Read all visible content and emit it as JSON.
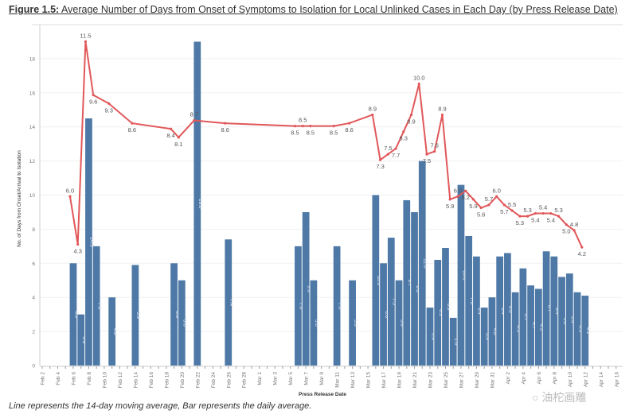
{
  "figure": {
    "label": "Figure 1.5:",
    "title": "Average Number of Days from Onset of Symptoms to Isolation for Local Unlinked Cases in Each Day (by Press Release Date)",
    "caption": "Line represents the 14-day moving average, Bar represents the daily average.",
    "watermark": "油柁画雕"
  },
  "chart_data": {
    "type": "bar+line",
    "xlabel": "Press Release Date",
    "ylabel": "No. of Days from Onset/Arrival to Isolation",
    "year": 2020,
    "x_range": [
      "Feb 2",
      "Apr 16"
    ],
    "ylim": [
      0,
      20
    ],
    "line_ylim": [
      0,
      12.1
    ],
    "yticks": [
      0,
      2,
      4,
      6,
      8,
      10,
      12,
      14,
      16,
      18
    ],
    "xtick_labels": [
      "Feb 2",
      "Feb 4",
      "Feb 6",
      "Feb 8",
      "Feb 10",
      "Feb 12",
      "Feb 14",
      "Feb 16",
      "Feb 18",
      "Feb 20",
      "Feb 22",
      "Feb 24",
      "Feb 26",
      "Feb 28",
      "Mar 1",
      "Mar 3",
      "Mar 5",
      "Mar 7",
      "Mar 9",
      "Mar 11",
      "Mar 13",
      "Mar 15",
      "Mar 17",
      "Mar 19",
      "Mar 21",
      "Mar 23",
      "Mar 25",
      "Mar 27",
      "Mar 29",
      "Mar 31",
      "Apr 2",
      "Apr 4",
      "Apr 6",
      "Apr 8",
      "Apr 10",
      "Apr 12",
      "Apr 14",
      "Apr 16"
    ],
    "grid": true,
    "colors": {
      "bar": "#4e79a7",
      "line": "#e15759"
    },
    "bars": [
      {
        "date": "Feb 6",
        "value": 6.0
      },
      {
        "date": "Feb 7",
        "value": 3.0
      },
      {
        "date": "Feb 8",
        "value": 14.5
      },
      {
        "date": "Feb 9",
        "value": 7.0
      },
      {
        "date": "Feb 11",
        "value": 4.0
      },
      {
        "date": "Feb 14",
        "value": 5.9
      },
      {
        "date": "Feb 19",
        "value": 6.0
      },
      {
        "date": "Feb 20",
        "value": 5.0
      },
      {
        "date": "Feb 22",
        "value": 19.0
      },
      {
        "date": "Feb 26",
        "value": 7.4
      },
      {
        "date": "Mar 6",
        "value": 7.0
      },
      {
        "date": "Mar 7",
        "value": 9.0
      },
      {
        "date": "Mar 8",
        "value": 5.0
      },
      {
        "date": "Mar 11",
        "value": 7.0
      },
      {
        "date": "Mar 13",
        "value": 5.0
      },
      {
        "date": "Mar 16",
        "value": 10.0
      },
      {
        "date": "Mar 17",
        "value": 6.0
      },
      {
        "date": "Mar 18",
        "value": 7.5
      },
      {
        "date": "Mar 19",
        "value": 5.0
      },
      {
        "date": "Mar 20",
        "value": 9.7
      },
      {
        "date": "Mar 21",
        "value": 9.0
      },
      {
        "date": "Mar 22",
        "value": 12.0
      },
      {
        "date": "Mar 23",
        "value": 3.4
      },
      {
        "date": "Mar 24",
        "value": 6.2
      },
      {
        "date": "Mar 25",
        "value": 6.9
      },
      {
        "date": "Mar 26",
        "value": 2.8
      },
      {
        "date": "Mar 27",
        "value": 10.6
      },
      {
        "date": "Mar 28",
        "value": 7.6
      },
      {
        "date": "Mar 29",
        "value": 6.4
      },
      {
        "date": "Mar 30",
        "value": 3.4
      },
      {
        "date": "Mar 31",
        "value": 4.0
      },
      {
        "date": "Apr 1",
        "value": 6.4
      },
      {
        "date": "Apr 2",
        "value": 6.6
      },
      {
        "date": "Apr 3",
        "value": 4.3
      },
      {
        "date": "Apr 4",
        "value": 5.7
      },
      {
        "date": "Apr 5",
        "value": 4.7
      },
      {
        "date": "Apr 6",
        "value": 4.5
      },
      {
        "date": "Apr 7",
        "value": 6.7
      },
      {
        "date": "Apr 8",
        "value": 6.4
      },
      {
        "date": "Apr 9",
        "value": 5.2
      },
      {
        "date": "Apr 10",
        "value": 5.4
      },
      {
        "date": "Apr 11",
        "value": 4.3
      },
      {
        "date": "Apr 12",
        "value": 4.1
      }
    ],
    "line": [
      {
        "date": "Feb 6",
        "value": 6.0
      },
      {
        "date": "Feb 7",
        "value": 4.3
      },
      {
        "date": "Feb 8",
        "value": 11.5
      },
      {
        "date": "Feb 9",
        "value": 9.6
      },
      {
        "date": "Feb 11",
        "value": 9.3
      },
      {
        "date": "Feb 14",
        "value": 8.6
      },
      {
        "date": "Feb 19",
        "value": 8.4
      },
      {
        "date": "Feb 20",
        "value": 8.1
      },
      {
        "date": "Feb 22",
        "value": 8.7
      },
      {
        "date": "Feb 26",
        "value": 8.6
      },
      {
        "date": "Mar 6",
        "value": 8.5
      },
      {
        "date": "Mar 7",
        "value": 8.5
      },
      {
        "date": "Mar 8",
        "value": 8.5
      },
      {
        "date": "Mar 11",
        "value": 8.5
      },
      {
        "date": "Mar 13",
        "value": 8.6
      },
      {
        "date": "Mar 16",
        "value": 8.9
      },
      {
        "date": "Mar 17",
        "value": 7.3
      },
      {
        "date": "Mar 18",
        "value": 7.5
      },
      {
        "date": "Mar 19",
        "value": 7.7
      },
      {
        "date": "Mar 20",
        "value": 8.3
      },
      {
        "date": "Mar 21",
        "value": 8.9
      },
      {
        "date": "Mar 22",
        "value": 10.0
      },
      {
        "date": "Mar 23",
        "value": 7.5
      },
      {
        "date": "Mar 24",
        "value": 7.6
      },
      {
        "date": "Mar 25",
        "value": 8.9
      },
      {
        "date": "Mar 26",
        "value": 5.9
      },
      {
        "date": "Mar 27",
        "value": 6.0
      },
      {
        "date": "Mar 28",
        "value": 6.2
      },
      {
        "date": "Mar 29",
        "value": 5.9
      },
      {
        "date": "Mar 30",
        "value": 5.6
      },
      {
        "date": "Mar 31",
        "value": 5.7
      },
      {
        "date": "Apr 1",
        "value": 6.0
      },
      {
        "date": "Apr 2",
        "value": 5.7
      },
      {
        "date": "Apr 3",
        "value": 5.5
      },
      {
        "date": "Apr 4",
        "value": 5.3
      },
      {
        "date": "Apr 5",
        "value": 5.3
      },
      {
        "date": "Apr 6",
        "value": 5.4
      },
      {
        "date": "Apr 7",
        "value": 5.4
      },
      {
        "date": "Apr 8",
        "value": 5.4
      },
      {
        "date": "Apr 9",
        "value": 5.3
      },
      {
        "date": "Apr 10",
        "value": 5.0
      },
      {
        "date": "Apr 11",
        "value": 4.8
      },
      {
        "date": "Apr 12",
        "value": 4.2
      }
    ]
  }
}
